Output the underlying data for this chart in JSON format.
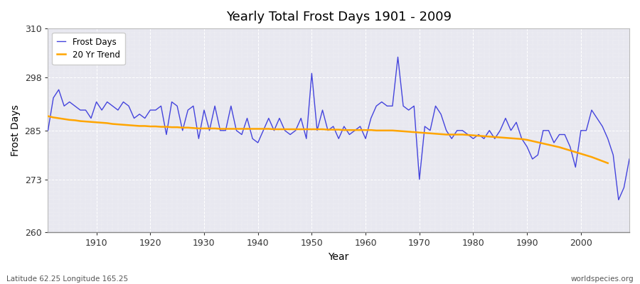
{
  "title": "Yearly Total Frost Days 1901 - 2009",
  "ylabel": "Frost Days",
  "xlabel": "Year",
  "lat_lon_label": "Latitude 62.25 Longitude 165.25",
  "credit_label": "worldspecies.org",
  "frost_days_color": "#4444dd",
  "trend_color": "#ffa500",
  "plot_bg_color": "#e8e8f0",
  "fig_bg_color": "#ffffff",
  "ylim": [
    260,
    310
  ],
  "yticks": [
    260,
    273,
    285,
    298,
    310
  ],
  "xlim": [
    1901,
    2009
  ],
  "xticks": [
    1910,
    1920,
    1930,
    1940,
    1950,
    1960,
    1970,
    1980,
    1990,
    2000
  ],
  "years": [
    1901,
    1902,
    1903,
    1904,
    1905,
    1906,
    1907,
    1908,
    1909,
    1910,
    1911,
    1912,
    1913,
    1914,
    1915,
    1916,
    1917,
    1918,
    1919,
    1920,
    1921,
    1922,
    1923,
    1924,
    1925,
    1926,
    1927,
    1928,
    1929,
    1930,
    1931,
    1932,
    1933,
    1934,
    1935,
    1936,
    1937,
    1938,
    1939,
    1940,
    1941,
    1942,
    1943,
    1944,
    1945,
    1946,
    1947,
    1948,
    1949,
    1950,
    1951,
    1952,
    1953,
    1954,
    1955,
    1956,
    1957,
    1958,
    1959,
    1960,
    1961,
    1962,
    1963,
    1964,
    1965,
    1966,
    1967,
    1968,
    1969,
    1970,
    1971,
    1972,
    1973,
    1974,
    1975,
    1976,
    1977,
    1978,
    1979,
    1980,
    1981,
    1982,
    1983,
    1984,
    1985,
    1986,
    1987,
    1988,
    1989,
    1990,
    1991,
    1992,
    1993,
    1994,
    1995,
    1996,
    1997,
    1998,
    1999,
    2000,
    2001,
    2002,
    2003,
    2004,
    2005,
    2006,
    2007,
    2008,
    2009
  ],
  "frost_days": [
    285,
    293,
    295,
    291,
    292,
    291,
    290,
    290,
    288,
    292,
    290,
    292,
    291,
    290,
    292,
    291,
    288,
    289,
    288,
    290,
    290,
    291,
    284,
    292,
    291,
    285,
    290,
    291,
    283,
    290,
    285,
    291,
    285,
    285,
    291,
    285,
    284,
    288,
    283,
    282,
    285,
    288,
    285,
    288,
    285,
    284,
    285,
    288,
    283,
    299,
    285,
    290,
    285,
    286,
    283,
    286,
    284,
    285,
    286,
    283,
    288,
    291,
    292,
    291,
    291,
    303,
    291,
    290,
    291,
    273,
    286,
    285,
    291,
    289,
    285,
    283,
    285,
    285,
    284,
    283,
    284,
    283,
    285,
    283,
    285,
    288,
    285,
    287,
    283,
    281,
    278,
    279,
    285,
    285,
    282,
    284,
    284,
    281,
    276,
    285,
    285,
    290,
    288,
    286,
    283,
    279,
    268,
    271,
    278
  ],
  "trend_years": [
    1901,
    1902,
    1903,
    1904,
    1905,
    1906,
    1907,
    1908,
    1909,
    1910,
    1911,
    1912,
    1913,
    1914,
    1915,
    1916,
    1917,
    1918,
    1919,
    1920,
    1921,
    1922,
    1923,
    1924,
    1925,
    1926,
    1927,
    1928,
    1929,
    1930,
    1931,
    1932,
    1933,
    1934,
    1935,
    1936,
    1937,
    1938,
    1939,
    1940,
    1941,
    1942,
    1943,
    1944,
    1945,
    1946,
    1947,
    1948,
    1949,
    1950,
    1951,
    1952,
    1953,
    1954,
    1955,
    1956,
    1957,
    1958,
    1959,
    1960,
    1961,
    1962,
    1963,
    1964,
    1965,
    1966,
    1967,
    1968,
    1969,
    1970,
    1971,
    1972,
    1973,
    1974,
    1975,
    1976,
    1977,
    1978,
    1979,
    1980,
    1981,
    1982,
    1983,
    1984,
    1985,
    1986,
    1987,
    1988,
    1989,
    1990,
    1991,
    1992,
    1993,
    1994,
    1995,
    1996,
    1997,
    1998,
    1999,
    2000,
    2001,
    2002,
    2003,
    2004,
    2005
  ],
  "trend_values": [
    288.5,
    288.2,
    288.0,
    287.8,
    287.6,
    287.5,
    287.3,
    287.2,
    287.1,
    287.0,
    286.9,
    286.8,
    286.6,
    286.5,
    286.4,
    286.3,
    286.2,
    286.1,
    286.1,
    286.0,
    286.0,
    285.9,
    285.9,
    285.8,
    285.8,
    285.7,
    285.7,
    285.6,
    285.5,
    285.5,
    285.5,
    285.5,
    285.4,
    285.4,
    285.4,
    285.4,
    285.4,
    285.4,
    285.4,
    285.4,
    285.4,
    285.4,
    285.3,
    285.3,
    285.3,
    285.3,
    285.3,
    285.3,
    285.3,
    285.3,
    285.3,
    285.3,
    285.2,
    285.2,
    285.2,
    285.1,
    285.1,
    285.1,
    285.1,
    285.1,
    285.1,
    285.0,
    285.0,
    285.0,
    285.0,
    284.9,
    284.8,
    284.7,
    284.6,
    284.5,
    284.4,
    284.3,
    284.2,
    284.1,
    284.0,
    284.0,
    284.0,
    284.0,
    283.9,
    283.8,
    283.7,
    283.6,
    283.5,
    283.4,
    283.3,
    283.2,
    283.1,
    283.0,
    282.9,
    282.7,
    282.4,
    282.1,
    281.8,
    281.5,
    281.2,
    280.9,
    280.5,
    280.1,
    279.7,
    279.3,
    278.9,
    278.5,
    278.0,
    277.5,
    277.0
  ]
}
